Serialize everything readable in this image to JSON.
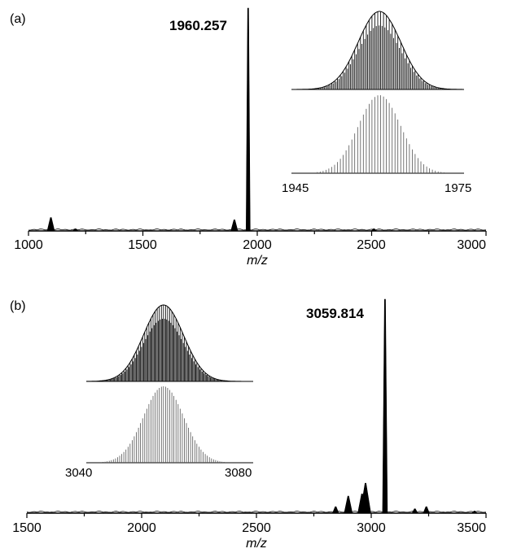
{
  "chart_data": [
    {
      "type": "line",
      "panel_label": "(a)",
      "xlabel": "m/z",
      "ylabel": "",
      "xlim": [
        1000,
        3000
      ],
      "x_ticks": [
        1000,
        1500,
        2000,
        2500,
        3000
      ],
      "x_tick_labels": [
        "1000",
        "1500",
        "2000",
        "2500",
        "3000"
      ],
      "grid": false,
      "main_peak_label": "1960.257",
      "peaks": [
        {
          "x": 1098,
          "y": 0.06
        },
        {
          "x": 1205,
          "y": 0.01
        },
        {
          "x": 1900,
          "y": 0.05
        },
        {
          "x": 1960.257,
          "y": 1.0
        },
        {
          "x": 2510,
          "y": 0.01
        }
      ],
      "insets": [
        {
          "style": "dark",
          "x_min": 1945,
          "x_max": 1975,
          "center": 1960.3,
          "sigma": 3.7,
          "x_tick_labels": []
        },
        {
          "style": "light",
          "x_min": 1945,
          "x_max": 1975,
          "center": 1960.3,
          "sigma": 3.7,
          "x_tick_labels": [
            "1945",
            "1975"
          ]
        }
      ]
    },
    {
      "type": "line",
      "panel_label": "(b)",
      "xlabel": "m/z",
      "ylabel": "",
      "xlim": [
        1500,
        3500
      ],
      "x_ticks": [
        1500,
        2000,
        2500,
        3000,
        3500
      ],
      "x_tick_labels": [
        "1500",
        "2000",
        "2500",
        "3000",
        "3500"
      ],
      "grid": false,
      "main_peak_label": "3059.814",
      "peaks": [
        {
          "x": 2845,
          "y": 0.03
        },
        {
          "x": 2900,
          "y": 0.08
        },
        {
          "x": 2960,
          "y": 0.09
        },
        {
          "x": 2975,
          "y": 0.14
        },
        {
          "x": 3059.814,
          "y": 1.0
        },
        {
          "x": 3190,
          "y": 0.02
        },
        {
          "x": 3240,
          "y": 0.03
        },
        {
          "x": 3450,
          "y": 0.01
        }
      ],
      "insets": [
        {
          "style": "dark",
          "x_min": 3040,
          "x_max": 3080,
          "center": 3058.5,
          "sigma": 4.8,
          "x_tick_labels": []
        },
        {
          "style": "light",
          "x_min": 3040,
          "x_max": 3080,
          "center": 3058.5,
          "sigma": 4.8,
          "x_tick_labels": [
            "3040",
            "3080"
          ]
        }
      ]
    }
  ]
}
